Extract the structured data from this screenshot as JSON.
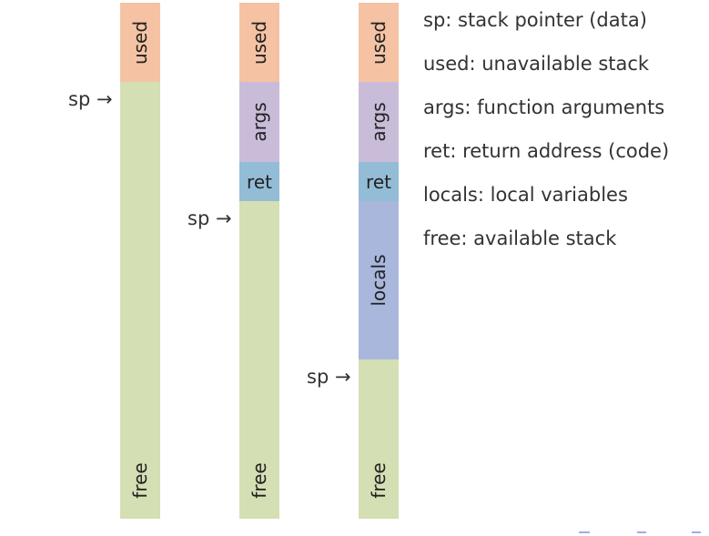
{
  "diagram": {
    "columns": [
      {
        "segments": {
          "used": "used",
          "free": "free"
        },
        "pointer": "sp →"
      },
      {
        "segments": {
          "used": "used",
          "args": "args",
          "ret": "ret",
          "free": "free"
        },
        "pointer": "sp →"
      },
      {
        "segments": {
          "used": "used",
          "args": "args",
          "ret": "ret",
          "locals": "locals",
          "free": "free"
        },
        "pointer": "sp →"
      }
    ],
    "legend": [
      "sp: stack pointer (data)",
      "used: unavailable stack",
      "args: function arguments",
      "ret: return address (code)",
      "locals: local variables",
      "free: available stack"
    ],
    "colors": {
      "used": "#f5c3a4",
      "args": "#c9bcd9",
      "ret": "#93bcd6",
      "locals": "#a9b7dd",
      "free": "#d4dfb3"
    }
  }
}
